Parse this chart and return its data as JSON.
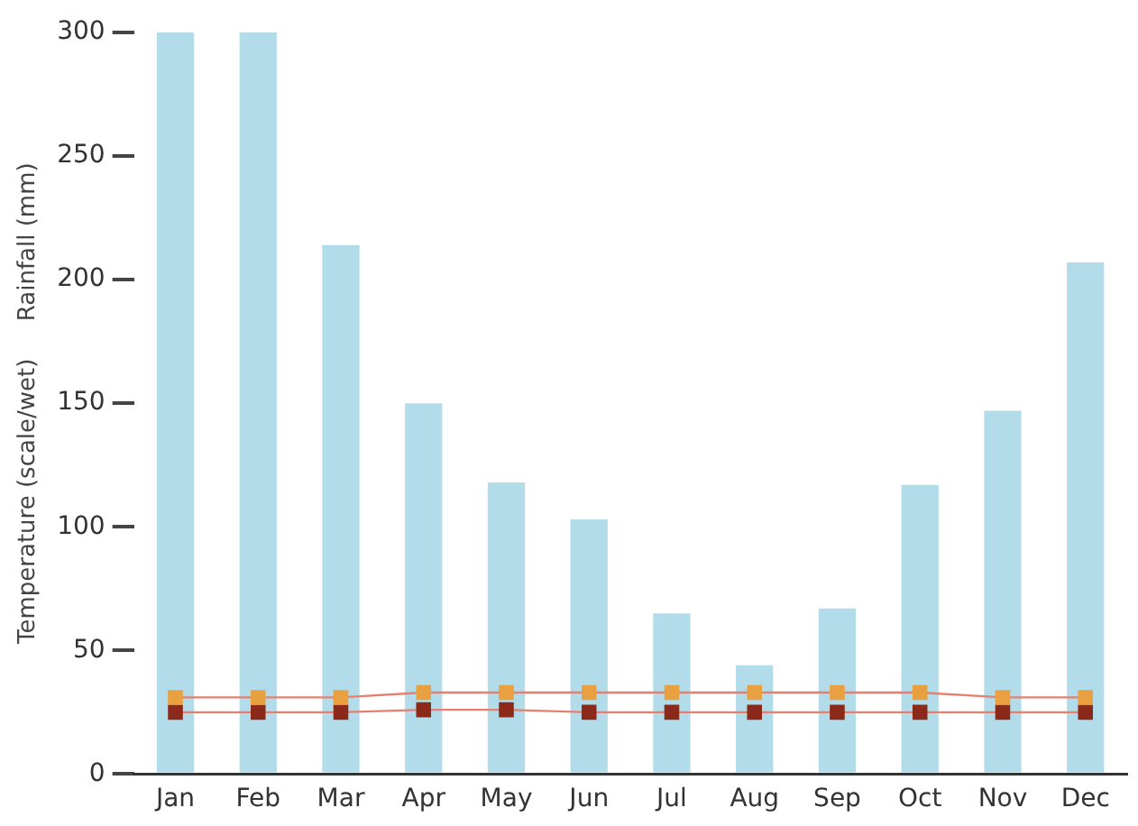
{
  "chart_data": {
    "type": "bar",
    "ylabel": "Temperature (scale/wet)     Rainfall (mm)",
    "categories": [
      "Jan",
      "Feb",
      "Mar",
      "Apr",
      "May",
      "Jun",
      "Jul",
      "Aug",
      "Sep",
      "Oct",
      "Nov",
      "Dec"
    ],
    "series": [
      {
        "color": "#b3dcea",
        "values": [
          300,
          300,
          214,
          150,
          118,
          103,
          65,
          44,
          67,
          117,
          147,
          207
        ]
      },
      {
        "type": "line",
        "color": "#e8a040",
        "values": [
          31,
          31,
          31,
          33,
          33,
          33,
          33,
          33,
          33,
          33,
          31,
          31
        ]
      },
      {
        "type": "line",
        "color": "#8b2a1a",
        "values": [
          25,
          25,
          25,
          26,
          26,
          25,
          25,
          25,
          25,
          25,
          25,
          25
        ]
      }
    ],
    "ylim": [
      0,
      300
    ],
    "yticks": [
      0,
      50,
      100,
      150,
      200,
      250,
      300
    ],
    "grid": false,
    "legend": false,
    "marker": "square"
  }
}
